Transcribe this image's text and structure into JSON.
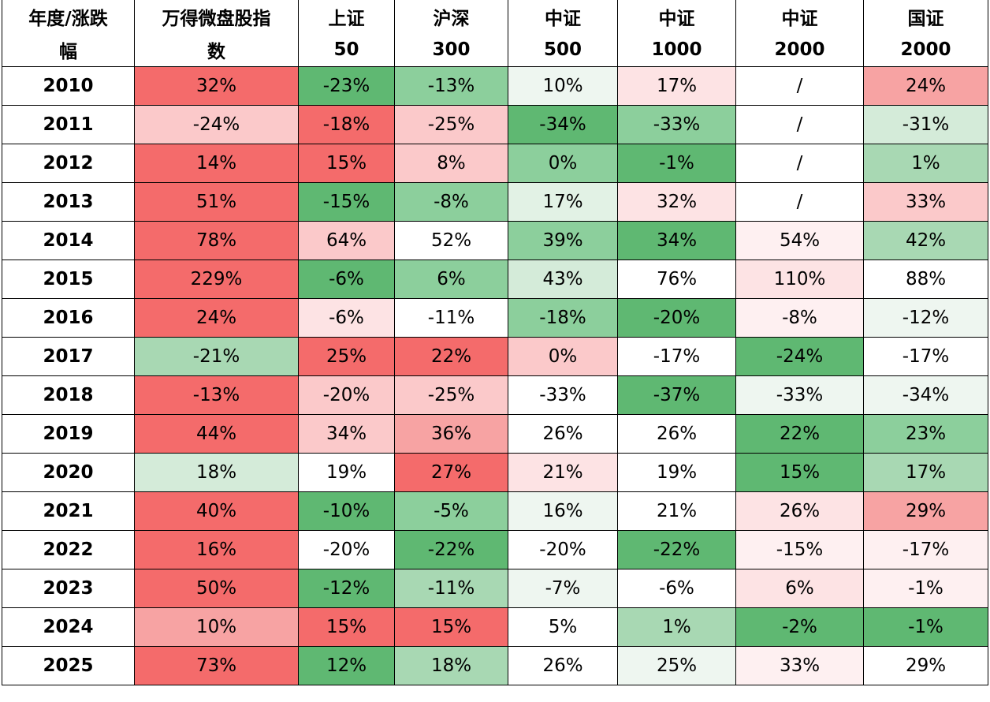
{
  "table": {
    "header": [
      [
        "年度/涨跌",
        "幅"
      ],
      [
        "万得微盘股指",
        "数"
      ],
      [
        "上证",
        "50"
      ],
      [
        "沪深",
        "300"
      ],
      [
        "中证",
        "500"
      ],
      [
        "中证",
        "1000"
      ],
      [
        "中证",
        "2000"
      ],
      [
        "国证",
        "2000"
      ]
    ],
    "rows": [
      [
        "2010",
        "32%",
        "-23%",
        "-13%",
        "10%",
        "17%",
        "/",
        "24%"
      ],
      [
        "2011",
        "-24%",
        "-18%",
        "-25%",
        "-34%",
        "-33%",
        "/",
        "-31%"
      ],
      [
        "2012",
        "14%",
        "15%",
        "8%",
        "0%",
        "-1%",
        "/",
        "1%"
      ],
      [
        "2013",
        "51%",
        "-15%",
        "-8%",
        "17%",
        "32%",
        "/",
        "33%"
      ],
      [
        "2014",
        "78%",
        "64%",
        "52%",
        "39%",
        "34%",
        "54%",
        "42%"
      ],
      [
        "2015",
        "229%",
        "-6%",
        "6%",
        "43%",
        "76%",
        "110%",
        "88%"
      ],
      [
        "2016",
        "24%",
        "-6%",
        "-11%",
        "-18%",
        "-20%",
        "-8%",
        "-12%"
      ],
      [
        "2017",
        "-21%",
        "25%",
        "22%",
        "0%",
        "-17%",
        "-24%",
        "-17%"
      ],
      [
        "2018",
        "-13%",
        "-20%",
        "-25%",
        "-33%",
        "-37%",
        "-33%",
        "-34%"
      ],
      [
        "2019",
        "44%",
        "34%",
        "36%",
        "26%",
        "26%",
        "22%",
        "23%"
      ],
      [
        "2020",
        "18%",
        "19%",
        "27%",
        "21%",
        "19%",
        "15%",
        "17%"
      ],
      [
        "2021",
        "40%",
        "-10%",
        "-5%",
        "16%",
        "21%",
        "26%",
        "29%"
      ],
      [
        "2022",
        "16%",
        "-20%",
        "-22%",
        "-20%",
        "-22%",
        "-15%",
        "-17%"
      ],
      [
        "2023",
        "50%",
        "-12%",
        "-11%",
        "-7%",
        "-6%",
        "6%",
        "-1%"
      ],
      [
        "2024",
        "10%",
        "15%",
        "15%",
        "5%",
        "1%",
        "-2%",
        "-1%"
      ],
      [
        "2025",
        "73%",
        "12%",
        "18%",
        "26%",
        "25%",
        "33%",
        "29%"
      ]
    ],
    "colors": [
      [
        "#ffffff",
        "#f46b6b",
        "#5fb872",
        "#8ccf9c",
        "#eef6f0",
        "#fde3e4",
        "#ffffff",
        "#f7a3a3"
      ],
      [
        "#ffffff",
        "#fbc9ca",
        "#f46b6b",
        "#fbc9ca",
        "#5fb872",
        "#8ccf9c",
        "#ffffff",
        "#d4ebd9"
      ],
      [
        "#ffffff",
        "#f46b6b",
        "#f46b6b",
        "#fbc9ca",
        "#8ccf9c",
        "#5fb872",
        "#ffffff",
        "#a8d8b3"
      ],
      [
        "#ffffff",
        "#f46b6b",
        "#5fb872",
        "#8ccf9c",
        "#e2f2e5",
        "#fde3e4",
        "#ffffff",
        "#fbc9ca"
      ],
      [
        "#ffffff",
        "#f46b6b",
        "#fbc9ca",
        "#ffffff",
        "#8ccf9c",
        "#5fb872",
        "#fef0f1",
        "#a8d8b3"
      ],
      [
        "#ffffff",
        "#f46b6b",
        "#5fb872",
        "#8ccf9c",
        "#d4ebd9",
        "#ffffff",
        "#fde3e4",
        "#ffffff"
      ],
      [
        "#ffffff",
        "#f46b6b",
        "#fde3e4",
        "#ffffff",
        "#8ccf9c",
        "#5fb872",
        "#fef0f1",
        "#eef6f0"
      ],
      [
        "#ffffff",
        "#a8d8b3",
        "#f46b6b",
        "#f46b6b",
        "#fbc9ca",
        "#ffffff",
        "#5fb872",
        "#ffffff"
      ],
      [
        "#ffffff",
        "#f46b6b",
        "#fbc9ca",
        "#fbc9ca",
        "#ffffff",
        "#5fb872",
        "#eef6f0",
        "#eef6f0"
      ],
      [
        "#ffffff",
        "#f46b6b",
        "#fbc9ca",
        "#f7a3a3",
        "#ffffff",
        "#ffffff",
        "#5fb872",
        "#8ccf9c"
      ],
      [
        "#ffffff",
        "#d4ebd9",
        "#ffffff",
        "#f46b6b",
        "#fde3e4",
        "#ffffff",
        "#5fb872",
        "#a8d8b3"
      ],
      [
        "#ffffff",
        "#f46b6b",
        "#5fb872",
        "#8ccf9c",
        "#eef6f0",
        "#ffffff",
        "#fde3e4",
        "#f7a3a3"
      ],
      [
        "#ffffff",
        "#f46b6b",
        "#ffffff",
        "#5fb872",
        "#ffffff",
        "#5fb872",
        "#fef0f1",
        "#fef0f1"
      ],
      [
        "#ffffff",
        "#f46b6b",
        "#5fb872",
        "#a8d8b3",
        "#eef6f0",
        "#ffffff",
        "#fde3e4",
        "#fef0f1"
      ],
      [
        "#ffffff",
        "#f7a3a3",
        "#f46b6b",
        "#f46b6b",
        "#ffffff",
        "#a8d8b3",
        "#5fb872",
        "#5fb872"
      ],
      [
        "#ffffff",
        "#f46b6b",
        "#5fb872",
        "#a8d8b3",
        "#ffffff",
        "#eef6f0",
        "#fef0f1",
        "#ffffff"
      ]
    ]
  }
}
